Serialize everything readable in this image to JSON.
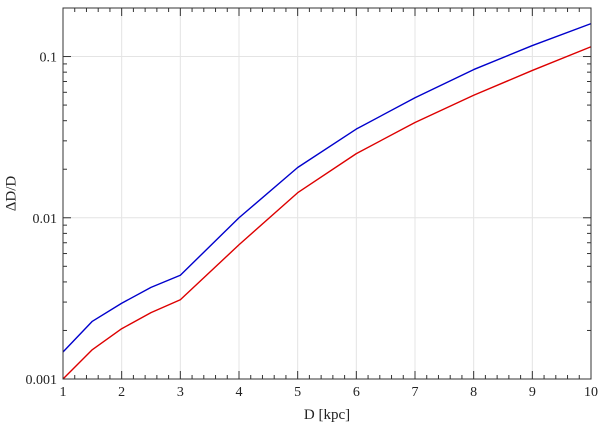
{
  "chart_data": {
    "type": "line",
    "title": "",
    "xlabel": "D [kpc]",
    "ylabel": "ΔD/D",
    "x_scale": "linear",
    "y_scale": "log",
    "xlim": [
      1,
      10
    ],
    "ylim": [
      0.001,
      0.2
    ],
    "grid": true,
    "legend": "none",
    "x_ticks": [
      1,
      2,
      3,
      4,
      5,
      6,
      7,
      8,
      9,
      10
    ],
    "x_tick_labels": [
      "1",
      "2",
      "3",
      "4",
      "5",
      "6",
      "7",
      "8",
      "9",
      "10"
    ],
    "y_ticks": [
      0.001,
      0.01,
      0.1
    ],
    "y_tick_labels": [
      "0.001",
      "0.01",
      "0.1"
    ],
    "series": [
      {
        "color": "#0000cc",
        "x": [
          1,
          1.5,
          2,
          2.5,
          3,
          4,
          5,
          6,
          7,
          8,
          9,
          10
        ],
        "y": [
          0.00147,
          0.00228,
          0.00295,
          0.0037,
          0.0044,
          0.01,
          0.0205,
          0.0355,
          0.0555,
          0.083,
          0.117,
          0.16
        ]
      },
      {
        "color": "#dd0000",
        "x": [
          1,
          1.5,
          2,
          2.5,
          3,
          4,
          5,
          6,
          7,
          8,
          9,
          10
        ],
        "y": [
          0.001,
          0.00152,
          0.00205,
          0.00258,
          0.0031,
          0.0068,
          0.0143,
          0.025,
          0.039,
          0.0575,
          0.082,
          0.115
        ]
      }
    ]
  }
}
